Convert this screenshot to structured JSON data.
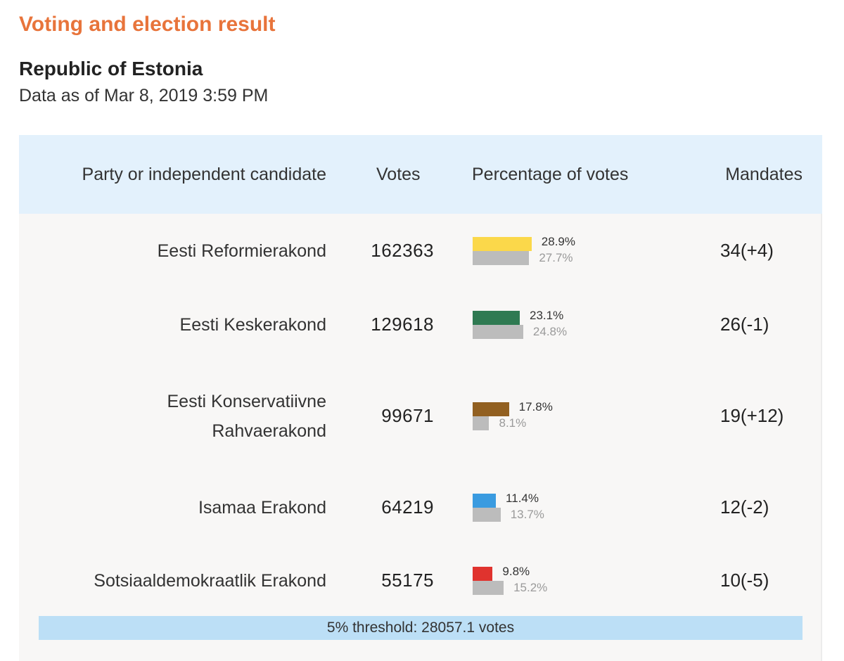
{
  "page": {
    "title": "Voting and election result",
    "subtitle": "Republic of Estonia",
    "timestamp": "Data as of Mar 8, 2019 3:59 PM"
  },
  "colors": {
    "title": "#e8743b",
    "header_bg": "#e3f1fc",
    "table_bg": "#f8f7f6",
    "previous_bar": "#bcbcbc",
    "threshold_bg": "#bcdff6"
  },
  "table": {
    "headers": {
      "party": "Party or independent candidate",
      "votes": "Votes",
      "percentage": "Percentage of votes",
      "mandates": "Mandates"
    },
    "rows": [
      {
        "party_line1": "Eesti Reformierakond",
        "party_line2": "",
        "votes": "162363",
        "pct_current": "28.9%",
        "pct_previous": "27.7%",
        "current_value": 28.9,
        "previous_value": 27.7,
        "color": "#fbd84a",
        "mandates_count": "34",
        "mandates_change": "(+4)"
      },
      {
        "party_line1": "Eesti Keskerakond",
        "party_line2": "",
        "votes": "129618",
        "pct_current": "23.1%",
        "pct_previous": "24.8%",
        "current_value": 23.1,
        "previous_value": 24.8,
        "color": "#2f7a52",
        "mandates_count": "26",
        "mandates_change": "(-1)"
      },
      {
        "party_line1": "Eesti Konservatiivne",
        "party_line2": "Rahvaerakond",
        "votes": "99671",
        "pct_current": "17.8%",
        "pct_previous": "8.1%",
        "current_value": 17.8,
        "previous_value": 8.1,
        "color": "#926021",
        "mandates_count": "19",
        "mandates_change": "(+12)"
      },
      {
        "party_line1": "Isamaa Erakond",
        "party_line2": "",
        "votes": "64219",
        "pct_current": "11.4%",
        "pct_previous": "13.7%",
        "current_value": 11.4,
        "previous_value": 13.7,
        "color": "#3a9be0",
        "mandates_count": "12",
        "mandates_change": "(-2)"
      },
      {
        "party_line1": "Sotsiaaldemokraatlik Erakond",
        "party_line2": "",
        "votes": "55175",
        "pct_current": "9.8%",
        "pct_previous": "15.2%",
        "current_value": 9.8,
        "previous_value": 15.2,
        "color": "#e0332e",
        "mandates_count": "10",
        "mandates_change": "(-5)"
      }
    ],
    "threshold": "5% threshold: 28057.1 votes"
  }
}
